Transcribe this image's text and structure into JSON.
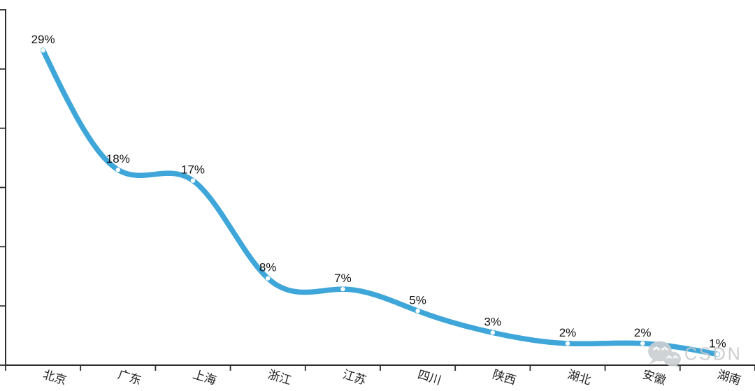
{
  "chart_data": {
    "type": "line",
    "categories": [
      "北京",
      "广东",
      "上海",
      "浙江",
      "江苏",
      "四川",
      "陕西",
      "湖北",
      "安徽",
      "湖南"
    ],
    "values": [
      29,
      18,
      17,
      8,
      7,
      5,
      3,
      2,
      2,
      1
    ],
    "data_labels": [
      "29%",
      "18%",
      "17%",
      "8%",
      "7%",
      "5%",
      "3%",
      "2%",
      "2%",
      "1%"
    ],
    "title": "",
    "xlabel": "",
    "ylabel": "",
    "ylim": [
      0,
      33
    ],
    "y_tick_count": 7,
    "grid": false,
    "legend": null,
    "smooth": true,
    "line_color": "#3ea6d9",
    "marker_color": "#ffffff",
    "axis_color": "#2d2d2d",
    "label_color": "#111111"
  },
  "watermark": {
    "text": "CSDN",
    "icon": "wechat-icon",
    "color": "#c6c8ca"
  }
}
